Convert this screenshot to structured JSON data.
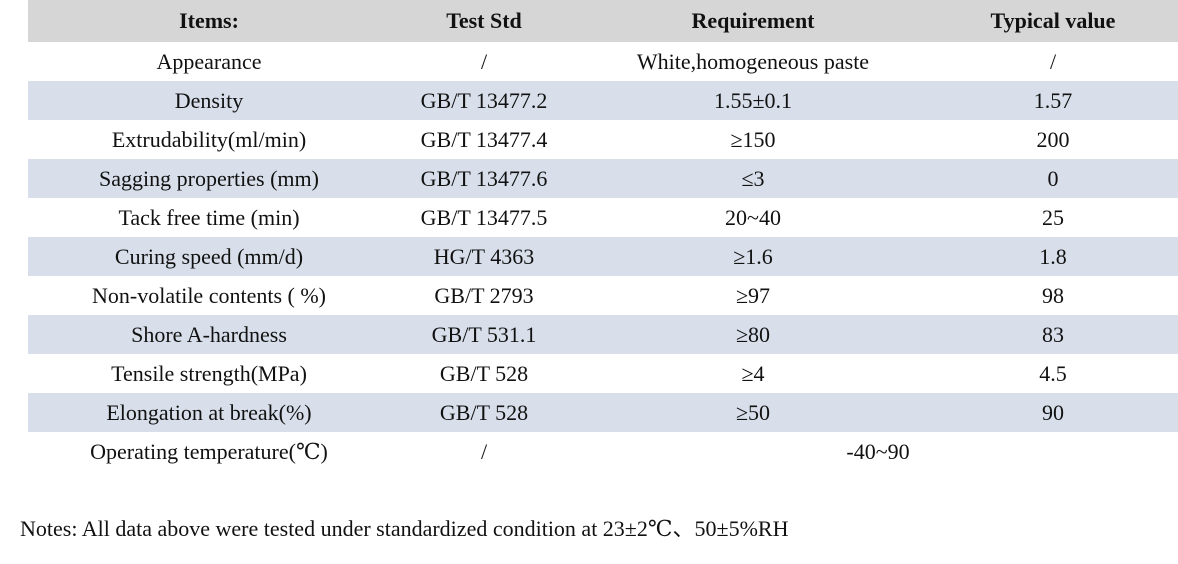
{
  "table": {
    "headers": {
      "items": "Items:",
      "test_std": "Test Std",
      "requirement": "Requirement",
      "typical_value": "Typical value"
    },
    "rows": [
      {
        "item": "Appearance",
        "test_std": "/",
        "requirement": "White,homogeneous paste",
        "typical_value": "/"
      },
      {
        "item": "Density",
        "test_std": "GB/T 13477.2",
        "requirement": "1.55±0.1",
        "typical_value": "1.57"
      },
      {
        "item": "Extrudability(ml/min)",
        "test_std": "GB/T 13477.4",
        "requirement": "≥150",
        "typical_value": "200"
      },
      {
        "item": "Sagging properties (mm)",
        "test_std": "GB/T 13477.6",
        "requirement": "≤3",
        "typical_value": "0"
      },
      {
        "item": "Tack free time (min)",
        "test_std": "GB/T 13477.5",
        "requirement": "20~40",
        "typical_value": "25"
      },
      {
        "item": "Curing speed (mm/d)",
        "test_std": "HG/T 4363",
        "requirement": "≥1.6",
        "typical_value": "1.8"
      },
      {
        "item": "Non-volatile contents ( %)",
        "test_std": "GB/T 2793",
        "requirement": "≥97",
        "typical_value": "98"
      },
      {
        "item": "Shore A-hardness",
        "test_std": "GB/T 531.1",
        "requirement": "≥80",
        "typical_value": "83"
      },
      {
        "item": "Tensile strength(MPa)",
        "test_std": "GB/T 528",
        "requirement": "≥4",
        "typical_value": "4.5"
      },
      {
        "item": "Elongation at break(%)",
        "test_std": "GB/T 528",
        "requirement": "≥50",
        "typical_value": "90"
      },
      {
        "item": "Operating temperature(℃)",
        "test_std": "/",
        "requirement": "-40~90",
        "typical_value": ""
      }
    ]
  },
  "notes": "Notes: All data above were tested under standardized condition at 23±2℃、50±5%RH",
  "colors": {
    "header_bg": "#d6d6d6",
    "stripe_bg": "#d8dfea",
    "row_bg": "#ffffff",
    "text": "#111111"
  }
}
